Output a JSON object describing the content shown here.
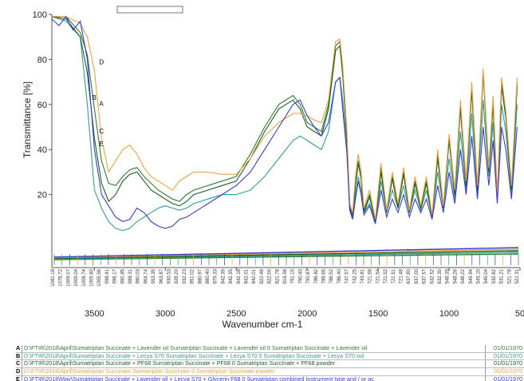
{
  "chart_data": {
    "type": "line",
    "title": "",
    "xlabel": "Wavenumber cm-1",
    "ylabel": "Transmittance [%]",
    "xlim": [
      3800,
      500
    ],
    "ylim": [
      0,
      100
    ],
    "x_ticks": [
      "3500",
      "3000",
      "2500",
      "2000",
      "1500",
      "1000",
      "50"
    ],
    "y_ticks": [
      "100",
      "80",
      "60",
      "40",
      "20"
    ],
    "peak_labels": [
      "1081.18",
      "1076.72",
      "1009.07",
      "1009.04",
      "1008.74",
      "1005.80",
      "1005.56",
      "998.41",
      "996.17",
      "990.85",
      "988.31",
      "980.03",
      "964.74",
      "953.35",
      "963.87",
      "930.53",
      "928.20",
      "932.23",
      "851.02",
      "880.97",
      "880.40",
      "879.33",
      "842.39",
      "842.35",
      "842.18",
      "842.01",
      "842.01",
      "822.48",
      "822.00",
      "821.78",
      "816.58",
      "791.10",
      "790.40",
      "790.87",
      "786.82",
      "786.65",
      "786.52",
      "786.40",
      "747.57",
      "742.25",
      "743.81",
      "721.58",
      "721.54",
      "721.52",
      "721.51",
      "721.48",
      "637.80",
      "637.00",
      "637.57",
      "632.52",
      "632.30",
      "548.35",
      "548.26",
      "548.22",
      "545.94",
      "545.10",
      "545.04",
      "532.82",
      "531.21",
      "521.78",
      "521.31"
    ],
    "series": [
      {
        "name": "A",
        "color": "#2e7d32",
        "x": [
          3800,
          3700,
          3600,
          3550,
          3500,
          3450,
          3400,
          3350,
          3300,
          3250,
          3200,
          3150,
          3100,
          3050,
          3000,
          2950,
          2900,
          2850,
          2800,
          2700,
          2600,
          2500,
          2400,
          2300,
          2200,
          2100,
          2050,
          2000,
          1950,
          1900,
          1850,
          1800,
          1770,
          1750,
          1720,
          1700,
          1680,
          1660,
          1640,
          1620,
          1600,
          1560,
          1520,
          1480,
          1440,
          1400,
          1360,
          1320,
          1280,
          1240,
          1200,
          1160,
          1120,
          1080,
          1040,
          1000,
          960,
          920,
          880,
          840,
          800,
          760,
          720,
          690,
          660,
          630,
          600,
          560,
          520
        ],
        "y": [
          99,
          99,
          92,
          82,
          58,
          35,
          25,
          24,
          28,
          31,
          32,
          28,
          25,
          22,
          20,
          18,
          17,
          20,
          22,
          24,
          26,
          28,
          38,
          50,
          60,
          64,
          60,
          52,
          50,
          48,
          60,
          86,
          88,
          75,
          45,
          15,
          11,
          25,
          35,
          28,
          13,
          20,
          8,
          32,
          12,
          28,
          15,
          30,
          12,
          26,
          14,
          26,
          10,
          38,
          14,
          45,
          20,
          60,
          25,
          68,
          22,
          75,
          30,
          62,
          18,
          70,
          55,
          22,
          70
        ]
      },
      {
        "name": "B",
        "color": "#2f9e8f",
        "x": [
          3800,
          3700,
          3600,
          3550,
          3500,
          3450,
          3400,
          3350,
          3300,
          3250,
          3200,
          3150,
          3100,
          3050,
          3000,
          2950,
          2900,
          2850,
          2800,
          2700,
          2600,
          2500,
          2400,
          2300,
          2200,
          2100,
          2050,
          2000,
          1950,
          1900,
          1850,
          1800,
          1770,
          1750,
          1720,
          1700,
          1680,
          1660,
          1640,
          1620,
          1600,
          1560,
          1520,
          1480,
          1440,
          1400,
          1360,
          1320,
          1280,
          1240,
          1200,
          1160,
          1120,
          1080,
          1040,
          1000,
          960,
          920,
          880,
          840,
          800,
          760,
          720,
          690,
          660,
          630,
          600,
          560,
          520
        ],
        "y": [
          99,
          97,
          90,
          60,
          22,
          14,
          8,
          5,
          4,
          5,
          8,
          10,
          12,
          14,
          15,
          14,
          13,
          14,
          16,
          18,
          20,
          20,
          22,
          28,
          36,
          44,
          46,
          44,
          42,
          40,
          48,
          70,
          72,
          62,
          40,
          14,
          10,
          20,
          28,
          22,
          12,
          16,
          8,
          26,
          12,
          22,
          14,
          24,
          12,
          22,
          13,
          22,
          10,
          30,
          14,
          36,
          18,
          48,
          22,
          56,
          20,
          62,
          28,
          52,
          18,
          60,
          48,
          20,
          60
        ]
      },
      {
        "name": "C",
        "color": "#1b5e20",
        "x": [
          3800,
          3700,
          3600,
          3550,
          3500,
          3450,
          3400,
          3350,
          3300,
          3250,
          3200,
          3150,
          3100,
          3050,
          3000,
          2950,
          2900,
          2850,
          2800,
          2700,
          2600,
          2500,
          2400,
          2300,
          2200,
          2100,
          2050,
          2000,
          1950,
          1900,
          1850,
          1800,
          1770,
          1750,
          1720,
          1700,
          1680,
          1660,
          1640,
          1620,
          1600,
          1560,
          1520,
          1480,
          1440,
          1400,
          1360,
          1320,
          1280,
          1240,
          1200,
          1160,
          1120,
          1080,
          1040,
          1000,
          960,
          920,
          880,
          840,
          800,
          760,
          720,
          690,
          660,
          630,
          600,
          560,
          520
        ],
        "y": [
          99,
          98,
          90,
          74,
          45,
          25,
          17,
          20,
          26,
          29,
          30,
          26,
          22,
          20,
          18,
          16,
          15,
          17,
          20,
          22,
          24,
          26,
          36,
          48,
          58,
          62,
          58,
          50,
          48,
          46,
          58,
          84,
          86,
          73,
          44,
          14,
          10,
          24,
          34,
          27,
          12,
          19,
          8,
          30,
          12,
          27,
          14,
          29,
          12,
          25,
          14,
          25,
          10,
          36,
          14,
          44,
          20,
          58,
          24,
          66,
          22,
          74,
          30,
          60,
          18,
          68,
          54,
          22,
          68
        ]
      },
      {
        "name": "D",
        "color": "#f0a040",
        "x": [
          3800,
          3700,
          3600,
          3550,
          3500,
          3450,
          3400,
          3350,
          3300,
          3250,
          3200,
          3150,
          3100,
          3050,
          3000,
          2950,
          2900,
          2850,
          2800,
          2700,
          2600,
          2500,
          2400,
          2300,
          2200,
          2100,
          2050,
          2000,
          1950,
          1900,
          1850,
          1800,
          1770,
          1750,
          1720,
          1700,
          1680,
          1660,
          1640,
          1620,
          1600,
          1560,
          1520,
          1480,
          1440,
          1400,
          1360,
          1320,
          1280,
          1240,
          1200,
          1160,
          1120,
          1080,
          1040,
          1000,
          960,
          920,
          880,
          840,
          800,
          760,
          720,
          690,
          660,
          630,
          600,
          560,
          520
        ],
        "y": [
          99,
          99,
          96,
          90,
          75,
          45,
          30,
          35,
          40,
          42,
          38,
          32,
          28,
          26,
          24,
          22,
          26,
          28,
          30,
          30,
          29,
          29,
          36,
          46,
          52,
          56,
          56,
          55,
          53,
          52,
          62,
          88,
          89,
          77,
          48,
          16,
          12,
          28,
          38,
          30,
          14,
          22,
          9,
          34,
          13,
          30,
          16,
          32,
          13,
          28,
          15,
          28,
          11,
          40,
          15,
          47,
          22,
          62,
          26,
          70,
          24,
          76,
          32,
          64,
          20,
          72,
          57,
          24,
          72
        ]
      },
      {
        "name": "E",
        "color": "#3a3ad0",
        "x": [
          3800,
          3750,
          3700,
          3650,
          3600,
          3550,
          3500,
          3450,
          3400,
          3350,
          3300,
          3250,
          3200,
          3150,
          3100,
          3050,
          3000,
          2950,
          2900,
          2850,
          2800,
          2700,
          2600,
          2500,
          2400,
          2300,
          2200,
          2100,
          2050,
          2000,
          1950,
          1900,
          1850,
          1800,
          1770,
          1750,
          1720,
          1700,
          1680,
          1660,
          1640,
          1620,
          1600,
          1560,
          1520,
          1480,
          1440,
          1400,
          1360,
          1320,
          1280,
          1240,
          1200,
          1160,
          1120,
          1080,
          1040,
          1000,
          960,
          920,
          880,
          840,
          800,
          760,
          720,
          690,
          660,
          630,
          600,
          560,
          520
        ],
        "y": [
          98,
          95,
          99,
          93,
          97,
          80,
          40,
          20,
          15,
          10,
          8,
          9,
          14,
          12,
          8,
          6,
          5,
          6,
          9,
          10,
          12,
          16,
          20,
          24,
          30,
          40,
          50,
          60,
          62,
          55,
          50,
          46,
          52,
          70,
          72,
          58,
          38,
          13,
          9,
          18,
          26,
          20,
          11,
          15,
          7,
          22,
          10,
          18,
          12,
          20,
          10,
          18,
          12,
          18,
          9,
          24,
          12,
          30,
          16,
          40,
          20,
          46,
          18,
          50,
          24,
          44,
          16,
          50,
          40,
          18,
          50
        ]
      }
    ]
  },
  "legend": {
    "rows": [
      {
        "id": "A",
        "color": "#2e7d32",
        "text": "D:\\FTIR\\2018\\April\\Sumatriptan Succinate + Lavender oil Sumatriptan Succinate + Lavender oil 0      Sumatriptan Succinate + Lavender oil",
        "date": "01/01/1970"
      },
      {
        "id": "B",
        "color": "#2f9e8f",
        "text": "D:\\FTIR\\2018\\April\\Sumatriptan Succinate + Lecya S70 Sumatriptan Succinate + Lecya S70 0      Sumatriptan Succinate + Lecya S70      ool",
        "date": "01/01/1970"
      },
      {
        "id": "C",
        "color": "#1b5e20",
        "text": "D:\\FTIR\\2018\\April\\Sumatriptan Succinate + PF68 Sumatriptan Succinate + PF68 0      Sumatriptan Succinate + PF68      powder",
        "date": "01/01/1970"
      },
      {
        "id": "D",
        "color": "#f0a040",
        "text": "D:\\FTIR\\2018\\April\\Sumatriptan Succinate Sumatriptan Succinate 0      Sumatriptan Succinate      powder",
        "date": "01/01/1970"
      },
      {
        "id": "E",
        "color": "#3a3ad0",
        "text": "D:\\FTIR\\2018\\May\\Sumatriptan Succinate + Lavender oil + Lecya S70 + Glycerin F68 0      Sumatriptan combined      Instrument type and / or ac",
        "date": "01/01/1970"
      }
    ]
  }
}
